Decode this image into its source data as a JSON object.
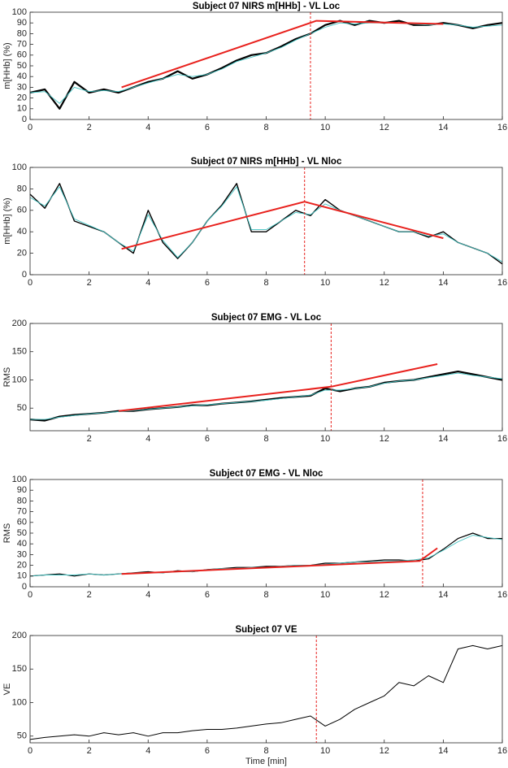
{
  "chart_data": [
    {
      "type": "line",
      "title": "Subject 07 NIRS m[HHb] - VL Loc",
      "ylabel": "m[HHb] (%)",
      "xlim": [
        0,
        16
      ],
      "xticks": [
        0,
        2,
        4,
        6,
        8,
        10,
        12,
        14,
        16
      ],
      "ylim": [
        0,
        100
      ],
      "yticks": [
        0,
        10,
        20,
        30,
        40,
        50,
        60,
        70,
        80,
        90,
        100
      ],
      "x": [
        0,
        0.5,
        1,
        1.5,
        2,
        2.5,
        3,
        3.5,
        4,
        4.5,
        5,
        5.5,
        6,
        6.5,
        7,
        7.5,
        8,
        8.5,
        9,
        9.5,
        10,
        10.5,
        11,
        11.5,
        12,
        12.5,
        13,
        13.5,
        14,
        14.5,
        15,
        15.5,
        16
      ],
      "series": [
        {
          "color": "#000000",
          "values": [
            25,
            28,
            10,
            35,
            25,
            28,
            25,
            30,
            35,
            38,
            45,
            38,
            42,
            48,
            55,
            60,
            62,
            68,
            75,
            80,
            88,
            92,
            88,
            92,
            90,
            92,
            88,
            88,
            90,
            88,
            85,
            88,
            90
          ]
        },
        {
          "color": "#3fc1c0",
          "values": [
            25,
            26,
            15,
            30,
            26,
            27,
            26,
            30,
            34,
            38,
            42,
            40,
            42,
            47,
            54,
            58,
            62,
            67,
            74,
            80,
            86,
            90,
            89,
            90,
            90,
            90,
            89,
            88,
            89,
            88,
            86,
            87,
            88
          ]
        },
        {
          "color": "#e8211d",
          "x": [
            3.1,
            9.7,
            14
          ],
          "values": [
            30,
            92,
            89
          ]
        }
      ],
      "vline": {
        "x": 9.5,
        "color": "#e8211d"
      }
    },
    {
      "type": "line",
      "title": "Subject 07 NIRS m[HHb] - VL Nloc",
      "ylabel": "m[HHb] (%)",
      "xlim": [
        0,
        16
      ],
      "xticks": [
        0,
        2,
        4,
        6,
        8,
        10,
        12,
        14,
        16
      ],
      "ylim": [
        0,
        100
      ],
      "yticks": [
        0,
        20,
        40,
        60,
        80,
        100
      ],
      "x": [
        0,
        0.5,
        1,
        1.5,
        2,
        2.5,
        3,
        3.5,
        4,
        4.5,
        5,
        5.5,
        6,
        6.5,
        7,
        7.5,
        8,
        8.5,
        9,
        9.5,
        10,
        10.5,
        11,
        11.5,
        12,
        12.5,
        13,
        13.5,
        14,
        14.5,
        15,
        15.5,
        16
      ],
      "series": [
        {
          "color": "#000000",
          "values": [
            75,
            62,
            85,
            50,
            45,
            40,
            30,
            20,
            60,
            30,
            15,
            30,
            50,
            65,
            85,
            40,
            40,
            50,
            60,
            55,
            70,
            60,
            55,
            50,
            45,
            40,
            40,
            35,
            40,
            30,
            25,
            20,
            10
          ]
        },
        {
          "color": "#3fc1c0",
          "values": [
            72,
            64,
            82,
            52,
            46,
            40,
            30,
            22,
            56,
            32,
            16,
            30,
            50,
            64,
            82,
            42,
            42,
            50,
            58,
            56,
            66,
            60,
            55,
            50,
            45,
            40,
            40,
            36,
            38,
            30,
            25,
            20,
            12
          ]
        },
        {
          "color": "#e8211d",
          "x": [
            3.1,
            9.3,
            14
          ],
          "values": [
            24,
            68,
            34
          ]
        }
      ],
      "vline": {
        "x": 9.3,
        "color": "#e8211d"
      }
    },
    {
      "type": "line",
      "title": "Subject 07 EMG - VL Loc",
      "ylabel": "RMS",
      "xlim": [
        0,
        16
      ],
      "xticks": [
        2,
        4,
        6,
        8,
        10,
        12,
        14,
        16
      ],
      "ylim": [
        10,
        200
      ],
      "yticks": [
        50,
        100,
        150,
        200
      ],
      "x": [
        0,
        0.5,
        1,
        1.5,
        2,
        2.5,
        3,
        3.5,
        4,
        4.5,
        5,
        5.5,
        6,
        6.5,
        7,
        7.5,
        8,
        8.5,
        9,
        9.5,
        10,
        10.5,
        11,
        11.5,
        12,
        12.5,
        13,
        13.5,
        14,
        14.5,
        15,
        15.5,
        16
      ],
      "series": [
        {
          "color": "#000000",
          "values": [
            30,
            28,
            35,
            38,
            40,
            42,
            45,
            45,
            48,
            50,
            52,
            55,
            55,
            58,
            60,
            62,
            65,
            68,
            70,
            72,
            85,
            80,
            85,
            88,
            95,
            98,
            100,
            105,
            110,
            115,
            110,
            105,
            100
          ]
        },
        {
          "color": "#3fc1c0",
          "values": [
            30,
            30,
            34,
            37,
            40,
            42,
            44,
            46,
            48,
            50,
            52,
            54,
            56,
            58,
            60,
            62,
            64,
            67,
            70,
            73,
            82,
            82,
            85,
            88,
            94,
            98,
            100,
            104,
            108,
            112,
            108,
            105,
            102
          ]
        },
        {
          "color": "#e8211d",
          "x": [
            3,
            10.2,
            13.8
          ],
          "values": [
            45,
            88,
            128
          ]
        }
      ],
      "vline": {
        "x": 10.2,
        "color": "#e8211d"
      }
    },
    {
      "type": "line",
      "title": "Subject 07 EMG - VL Nloc",
      "ylabel": "RMS",
      "xlim": [
        0,
        16
      ],
      "xticks": [
        0,
        2,
        4,
        6,
        8,
        10,
        12,
        14,
        16
      ],
      "ylim": [
        0,
        100
      ],
      "yticks": [
        0,
        10,
        20,
        30,
        40,
        50,
        60,
        70,
        80,
        90,
        100
      ],
      "x": [
        0,
        0.5,
        1,
        1.5,
        2,
        2.5,
        3,
        3.5,
        4,
        4.5,
        5,
        5.5,
        6,
        6.5,
        7,
        7.5,
        8,
        8.5,
        9,
        9.5,
        10,
        10.5,
        11,
        11.5,
        12,
        12.5,
        13,
        13.5,
        14,
        14.5,
        15,
        15.5,
        16
      ],
      "series": [
        {
          "color": "#000000",
          "values": [
            10,
            11,
            12,
            10,
            12,
            11,
            12,
            13,
            14,
            13,
            15,
            14,
            16,
            17,
            18,
            18,
            19,
            19,
            20,
            20,
            22,
            22,
            23,
            24,
            25,
            25,
            24,
            26,
            35,
            45,
            50,
            45,
            45
          ]
        },
        {
          "color": "#3fc1c0",
          "values": [
            10,
            11,
            11,
            11,
            12,
            11,
            12,
            13,
            13,
            13,
            14,
            14,
            16,
            17,
            17,
            18,
            18,
            19,
            20,
            20,
            21,
            22,
            23,
            23,
            24,
            24,
            25,
            27,
            34,
            42,
            48,
            46,
            44
          ]
        },
        {
          "color": "#e8211d",
          "x": [
            3.1,
            13.2,
            13.8
          ],
          "values": [
            12,
            24,
            36
          ]
        }
      ],
      "vline": {
        "x": 13.3,
        "color": "#e8211d"
      }
    },
    {
      "type": "line",
      "title": "Subject 07 VE",
      "ylabel": "VE",
      "xlabel": "Time [min]",
      "xlim": [
        0,
        16
      ],
      "xticks": [
        0,
        2,
        4,
        6,
        8,
        10,
        12,
        14,
        16
      ],
      "ylim": [
        40,
        200
      ],
      "yticks": [
        50,
        100,
        150,
        200
      ],
      "x": [
        0,
        0.5,
        1,
        1.5,
        2,
        2.5,
        3,
        3.5,
        4,
        4.5,
        5,
        5.5,
        6,
        6.5,
        7,
        7.5,
        8,
        8.5,
        9,
        9.5,
        10,
        10.5,
        11,
        11.5,
        12,
        12.5,
        13,
        13.5,
        14,
        14.5,
        15,
        15.5,
        16
      ],
      "series": [
        {
          "color": "#000000",
          "values": [
            45,
            48,
            50,
            52,
            50,
            55,
            52,
            55,
            50,
            55,
            55,
            58,
            60,
            60,
            62,
            65,
            68,
            70,
            75,
            80,
            65,
            75,
            90,
            100,
            110,
            130,
            125,
            140,
            130,
            180,
            185,
            180,
            185
          ]
        }
      ],
      "vline": {
        "x": 9.7,
        "color": "#e8211d"
      }
    }
  ]
}
